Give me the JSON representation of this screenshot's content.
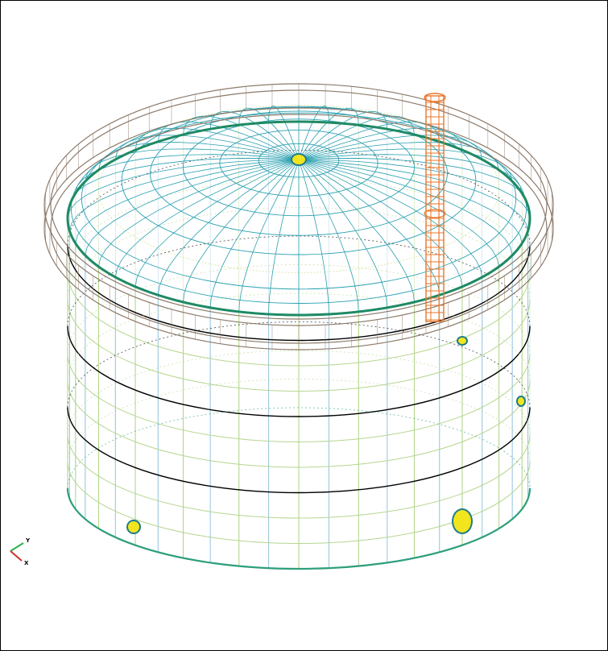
{
  "viewer": {
    "background": "#ffffff",
    "border_color": "#000000"
  },
  "model": {
    "description_colors": {
      "shell_vertical_lines": "#9cc8e0",
      "shell_rings": "#2e9e7c",
      "shell_course_lines": "#000000",
      "shell_secondary_lines": "#b5d68f",
      "roof_mesh": "#2aa0b0",
      "roof_inner_ring": "#d9e8a8",
      "rim_green": "#1f8a63",
      "platform_brown": "#8c7a6a",
      "ladder_orange": "#e8762a",
      "nozzle_yellow": "#f2e51e",
      "nozzle_teal": "#1f7c8c"
    },
    "roof": {
      "radial_divisions": 48,
      "ring_divisions": 9
    },
    "shell": {
      "vertical_divisions": 48,
      "horizontal_rings": 10
    },
    "nozzles": 5
  },
  "axis_triad": {
    "y_label": "Y",
    "x_label": "X",
    "y_color": "#2bb24c",
    "x_color": "#d0312d"
  }
}
